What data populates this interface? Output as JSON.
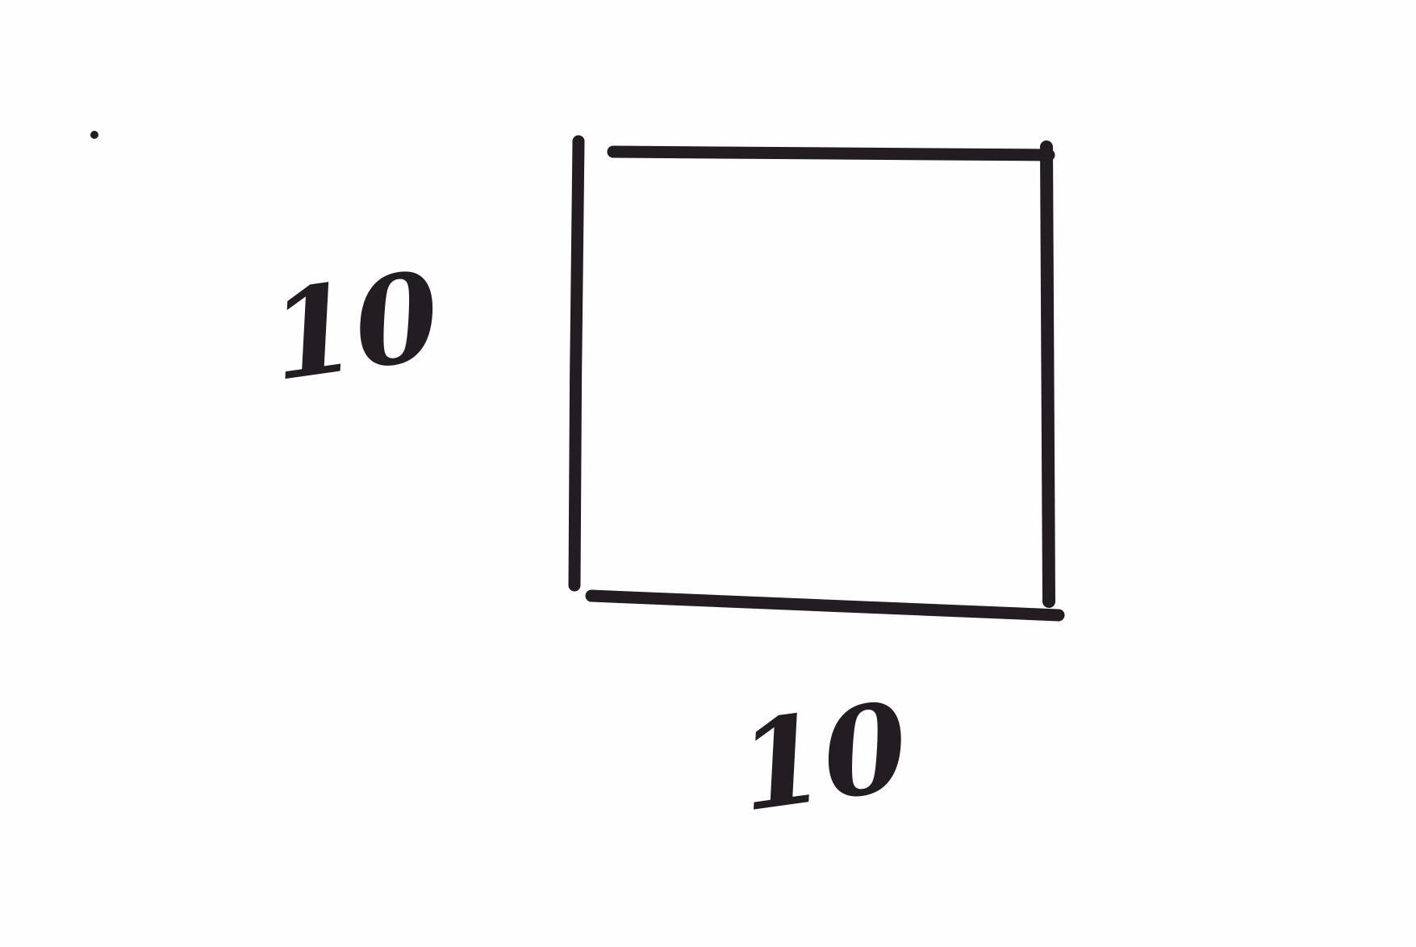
{
  "diagram": {
    "shape": "square",
    "side_label_left": "10",
    "side_label_bottom": "10"
  },
  "colors": {
    "ink": "#231c22",
    "paper": "#fefefe"
  }
}
